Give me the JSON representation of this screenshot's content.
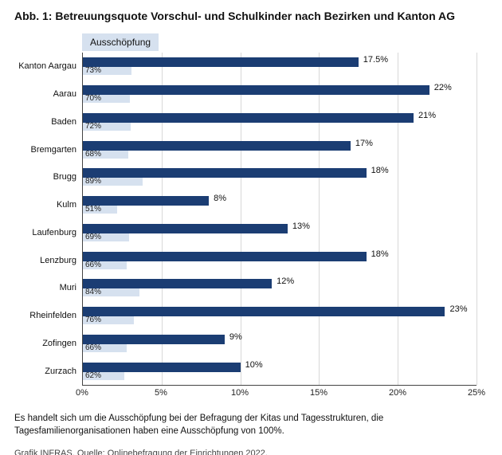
{
  "title": "Abb. 1: Betreuungsquote Vorschul- und Schulkinder nach Bezirken und Kanton AG",
  "legend_label": "Ausschöpfung",
  "note": "Es handelt sich um die Ausschöpfung bei der Befragung der Kitas und Tagesstrukturen, die Tagesfamilienorganisationen haben eine Ausschöpfung von 100%.",
  "source": "Grafik INFRAS. Quelle: Onlinebefragung der Einrichtungen 2022.",
  "chart": {
    "type": "bar-horizontal-grouped",
    "x_min": 0,
    "x_max": 25,
    "x_tick_step": 5,
    "x_tick_format_suffix": "%",
    "bg_scale_max": 100,
    "fg_color": "#1b3d73",
    "bg_color": "#d6e1ef",
    "grid_color": "#d8d8d8",
    "axis_color": "#444444",
    "font_size_ticks": 11,
    "font_size_labels": 11,
    "categories": [
      {
        "name": "Kanton Aargau",
        "fg_value": 17.5,
        "fg_label": "17.5%",
        "bg_value": 73,
        "bg_label": "73%"
      },
      {
        "name": "Aarau",
        "fg_value": 22,
        "fg_label": "22%",
        "bg_value": 70,
        "bg_label": "70%"
      },
      {
        "name": "Baden",
        "fg_value": 21,
        "fg_label": "21%",
        "bg_value": 72,
        "bg_label": "72%"
      },
      {
        "name": "Bremgarten",
        "fg_value": 17,
        "fg_label": "17%",
        "bg_value": 68,
        "bg_label": "68%"
      },
      {
        "name": "Brugg",
        "fg_value": 18,
        "fg_label": "18%",
        "bg_value": 89,
        "bg_label": "89%"
      },
      {
        "name": "Kulm",
        "fg_value": 8,
        "fg_label": "8%",
        "bg_value": 51,
        "bg_label": "51%"
      },
      {
        "name": "Laufenburg",
        "fg_value": 13,
        "fg_label": "13%",
        "bg_value": 69,
        "bg_label": "69%"
      },
      {
        "name": "Lenzburg",
        "fg_value": 18,
        "fg_label": "18%",
        "bg_value": 66,
        "bg_label": "66%"
      },
      {
        "name": "Muri",
        "fg_value": 12,
        "fg_label": "12%",
        "bg_value": 84,
        "bg_label": "84%"
      },
      {
        "name": "Rheinfelden",
        "fg_value": 23,
        "fg_label": "23%",
        "bg_value": 76,
        "bg_label": "76%"
      },
      {
        "name": "Zofingen",
        "fg_value": 9,
        "fg_label": "9%",
        "bg_value": 66,
        "bg_label": "66%"
      },
      {
        "name": "Zurzach",
        "fg_value": 10,
        "fg_label": "10%",
        "bg_value": 62,
        "bg_label": "62%"
      }
    ]
  }
}
